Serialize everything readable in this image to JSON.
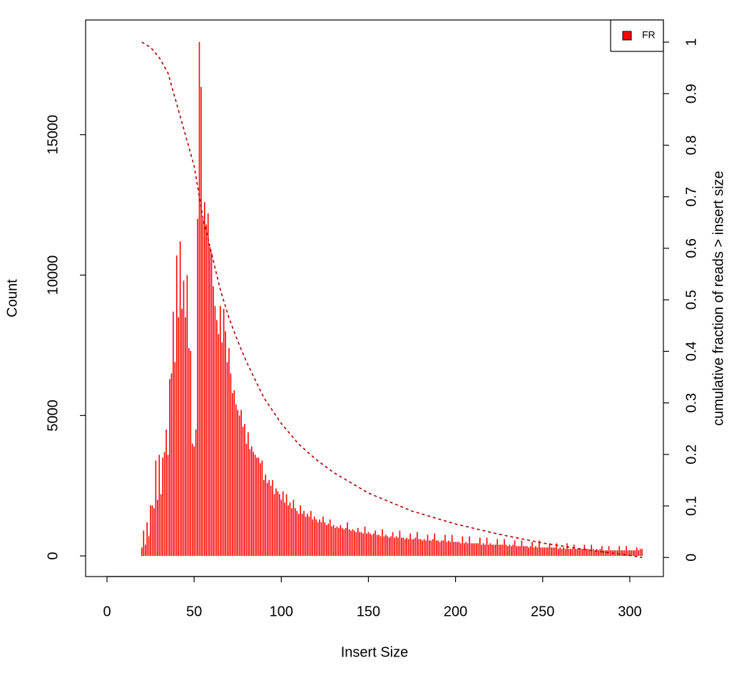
{
  "chart_data": {
    "type": "bar",
    "xlabel": "Insert Size",
    "ylabel": "Count",
    "y2label": "cumulative fraction of reads > insert size",
    "xlim": [
      -12.28,
      319.28
    ],
    "xticks": [
      0,
      50,
      100,
      150,
      200,
      250,
      300
    ],
    "ylim": [
      -734,
      19084
    ],
    "yticks": [
      0,
      5000,
      10000,
      15000
    ],
    "y2lim": [
      -0.037,
      1.043
    ],
    "y2ticks": [
      0,
      0.1,
      0.2,
      0.3,
      0.4,
      0.5,
      0.6,
      0.7,
      0.8,
      0.9,
      1
    ],
    "legend": "topright",
    "series": [
      {
        "name": "FR",
        "type": "bar",
        "color": "#ff0000",
        "x": [
          20,
          21,
          22,
          23,
          24,
          25,
          26,
          27,
          28,
          29,
          30,
          31,
          32,
          33,
          34,
          35,
          36,
          37,
          38,
          39,
          40,
          41,
          42,
          43,
          44,
          45,
          46,
          47,
          48,
          49,
          50,
          51,
          52,
          53,
          54,
          55,
          56,
          57,
          58,
          59,
          60,
          61,
          62,
          63,
          64,
          65,
          66,
          67,
          68,
          69,
          70,
          71,
          72,
          73,
          74,
          75,
          76,
          77,
          78,
          79,
          80,
          81,
          82,
          83,
          84,
          85,
          86,
          87,
          88,
          89,
          90,
          91,
          92,
          93,
          94,
          95,
          96,
          97,
          98,
          99,
          100,
          101,
          102,
          103,
          104,
          105,
          106,
          107,
          108,
          109,
          110,
          111,
          112,
          113,
          114,
          115,
          116,
          117,
          118,
          119,
          120,
          121,
          122,
          123,
          124,
          125,
          126,
          127,
          128,
          129,
          130,
          131,
          132,
          133,
          134,
          135,
          136,
          137,
          138,
          139,
          140,
          141,
          142,
          143,
          144,
          145,
          146,
          147,
          148,
          149,
          150,
          151,
          152,
          153,
          154,
          155,
          156,
          157,
          158,
          159,
          160,
          161,
          162,
          163,
          164,
          165,
          166,
          167,
          168,
          169,
          170,
          171,
          172,
          173,
          174,
          175,
          176,
          177,
          178,
          179,
          180,
          181,
          182,
          183,
          184,
          185,
          186,
          187,
          188,
          189,
          190,
          191,
          192,
          193,
          194,
          195,
          196,
          197,
          198,
          199,
          200,
          201,
          202,
          203,
          204,
          205,
          206,
          207,
          208,
          209,
          210,
          211,
          212,
          213,
          214,
          215,
          216,
          217,
          218,
          219,
          220,
          221,
          222,
          223,
          224,
          225,
          226,
          227,
          228,
          229,
          230,
          231,
          232,
          233,
          234,
          235,
          236,
          237,
          238,
          239,
          240,
          241,
          242,
          243,
          244,
          245,
          246,
          247,
          248,
          249,
          250,
          251,
          252,
          253,
          254,
          255,
          256,
          257,
          258,
          259,
          260,
          261,
          262,
          263,
          264,
          265,
          266,
          267,
          268,
          269,
          270,
          271,
          272,
          273,
          274,
          275,
          276,
          277,
          278,
          279,
          280,
          281,
          282,
          283,
          284,
          285,
          286,
          287,
          288,
          289,
          290,
          291,
          292,
          293,
          294,
          295,
          296,
          297,
          298,
          299,
          300,
          301,
          302,
          303,
          304,
          305,
          306,
          307
        ],
        "values": [
          300,
          900,
          400,
          1200,
          700,
          1800,
          1800,
          1700,
          3400,
          2000,
          3600,
          2200,
          3500,
          3700,
          4500,
          3600,
          6300,
          6500,
          8700,
          6900,
          10700,
          8500,
          11200,
          8800,
          9800,
          8500,
          10000,
          7400,
          7300,
          4000,
          3900,
          4500,
          12000,
          18300,
          16700,
          12000,
          12600,
          11800,
          12200,
          11000,
          10800,
          9600,
          8900,
          8400,
          7900,
          8900,
          7600,
          8800,
          8000,
          6900,
          7400,
          6500,
          5800,
          5900,
          5400,
          5200,
          5000,
          5200,
          4600,
          4700,
          4000,
          4400,
          3800,
          3900,
          3700,
          3600,
          3500,
          3500,
          3300,
          3400,
          2700,
          2900,
          2600,
          2700,
          2500,
          2700,
          2200,
          2400,
          2300,
          2200,
          2000,
          2300,
          1900,
          2200,
          1800,
          1900,
          1700,
          2000,
          1700,
          1600,
          1500,
          1800,
          1500,
          1600,
          1400,
          1500,
          1400,
          1600,
          1300,
          1400,
          1300,
          1200,
          1300,
          1200,
          1400,
          1200,
          1100,
          1150,
          1300,
          1050,
          1100,
          1000,
          1050,
          1000,
          1100,
          1000,
          950,
          1000,
          1200,
          950,
          900,
          950,
          900,
          850,
          1000,
          850,
          850,
          800,
          1050,
          800,
          850,
          800,
          750,
          800,
          900,
          750,
          750,
          700,
          950,
          700,
          750,
          700,
          650,
          700,
          850,
          650,
          700,
          650,
          900,
          650,
          650,
          600,
          650,
          600,
          800,
          600,
          600,
          650,
          850,
          600,
          600,
          550,
          600,
          550,
          750,
          550,
          550,
          600,
          800,
          550,
          550,
          500,
          550,
          550,
          750,
          500,
          550,
          500,
          750,
          500,
          500,
          500,
          500,
          450,
          700,
          450,
          500,
          450,
          700,
          450,
          450,
          450,
          450,
          450,
          650,
          400,
          450,
          400,
          650,
          400,
          450,
          400,
          400,
          400,
          600,
          400,
          400,
          400,
          600,
          400,
          350,
          400,
          350,
          400,
          550,
          350,
          350,
          350,
          550,
          350,
          350,
          350,
          300,
          350,
          500,
          300,
          350,
          300,
          550,
          300,
          300,
          300,
          300,
          300,
          450,
          300,
          300,
          300,
          450,
          250,
          300,
          250,
          300,
          250,
          450,
          250,
          250,
          250,
          400,
          250,
          250,
          250,
          250,
          250,
          400,
          250,
          250,
          200,
          400,
          250,
          200,
          250,
          200,
          250,
          350,
          200,
          200,
          200,
          350,
          200,
          200,
          200,
          200,
          200,
          350,
          200,
          200,
          200,
          350,
          200,
          200,
          200,
          200,
          200,
          300,
          200,
          250,
          250
        ]
      },
      {
        "type": "line",
        "axis": "y2",
        "color": "#aa0000",
        "x": [
          20,
          25,
          30,
          35,
          40,
          45,
          50,
          55,
          60,
          65,
          70,
          75,
          80,
          90,
          100,
          110,
          120,
          130,
          140,
          150,
          175,
          200,
          225,
          250,
          275,
          300,
          307
        ],
        "values": [
          1.0,
          0.99,
          0.97,
          0.94,
          0.88,
          0.82,
          0.76,
          0.66,
          0.59,
          0.52,
          0.465,
          0.42,
          0.38,
          0.31,
          0.26,
          0.22,
          0.19,
          0.165,
          0.145,
          0.125,
          0.09,
          0.065,
          0.045,
          0.028,
          0.015,
          0.004,
          0
        ]
      }
    ]
  }
}
